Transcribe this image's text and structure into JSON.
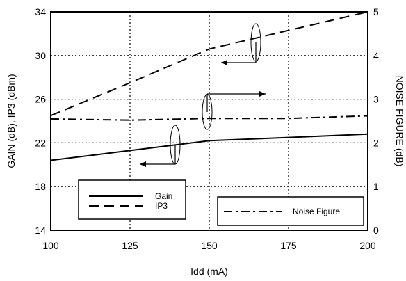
{
  "chart_data": {
    "type": "line",
    "title": "",
    "xlabel": "Idd (mA)",
    "ylabel_left": "GAIN (dB), IP3 (dBm)",
    "ylabel_right": "NOISE FIGURE (dB)",
    "x_ticks": [
      "100",
      "125",
      "150",
      "175",
      "200"
    ],
    "y_left_ticks": [
      "14",
      "18",
      "22",
      "26",
      "30",
      "34"
    ],
    "y_right_ticks": [
      "0",
      "1",
      "2",
      "3",
      "4",
      "5"
    ],
    "xlim": [
      100,
      200
    ],
    "ylim_left": [
      14,
      34
    ],
    "ylim_right": [
      0,
      5
    ],
    "grid": true,
    "series": [
      {
        "name": "Gain",
        "axis": "left",
        "style": "solid",
        "x": [
          100,
          125,
          150,
          175,
          200
        ],
        "y": [
          20.4,
          21.3,
          22.2,
          22.5,
          22.8
        ]
      },
      {
        "name": "IP3",
        "axis": "left",
        "style": "dashed",
        "x": [
          100,
          125,
          150,
          175,
          200
        ],
        "y": [
          24.5,
          27.5,
          30.6,
          32.3,
          34.0
        ]
      },
      {
        "name": "Noise Figure",
        "axis": "right",
        "style": "dashdot",
        "x": [
          100,
          125,
          150,
          175,
          200
        ],
        "y": [
          2.55,
          2.52,
          2.56,
          2.56,
          2.62
        ]
      }
    ],
    "legends": [
      {
        "placement": "bottom-left",
        "entries": [
          "Gain",
          "IP3"
        ]
      },
      {
        "placement": "bottom-right",
        "entries": [
          "Noise Figure"
        ]
      }
    ]
  }
}
